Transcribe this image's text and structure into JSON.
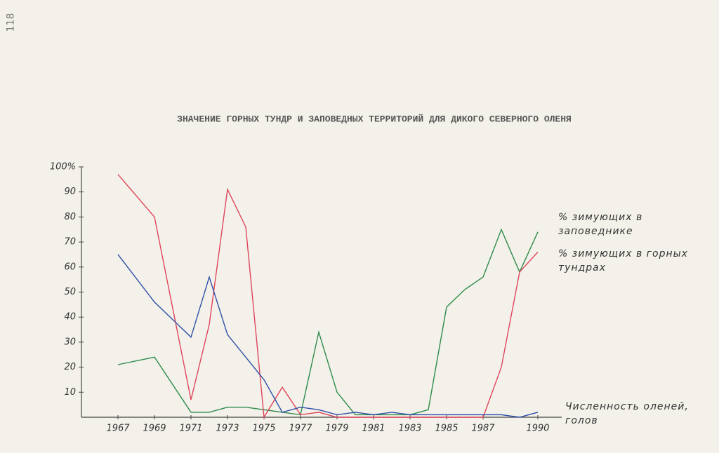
{
  "page_number": "118",
  "chart_data": {
    "type": "line",
    "title": "ЗНАЧЕНИЕ ГОРНЫХ ТУНДР И ЗАПОВЕДНЫХ ТЕРРИТОРИЙ ДЛЯ ДИКОГО СЕВЕРНОГО ОЛЕНЯ",
    "x": [
      1967,
      1969,
      1971,
      1972,
      1973,
      1974,
      1975,
      1976,
      1977,
      1978,
      1979,
      1980,
      1981,
      1982,
      1983,
      1984,
      1985,
      1986,
      1987,
      1988,
      1989,
      1990
    ],
    "series": [
      {
        "name": "% зимующих в заповеднике",
        "color": "#2e8b4a",
        "values": [
          21,
          24,
          2,
          2,
          4,
          4,
          3,
          2,
          1,
          34,
          10,
          1,
          1,
          1,
          1,
          3,
          44,
          51,
          56,
          75,
          58,
          74
        ]
      },
      {
        "name": "% зимующих в горных тундрах",
        "color": "#e0455a",
        "values": [
          97,
          80,
          7,
          37,
          91,
          76,
          0,
          12,
          1,
          2,
          0,
          0,
          0,
          0,
          0,
          0,
          0,
          0,
          0,
          20,
          58,
          66
        ]
      },
      {
        "name": "Численность оленей, голов",
        "color": "#2f4fa8",
        "values": [
          65,
          46,
          32,
          56,
          33,
          24,
          15,
          2,
          4,
          3,
          1,
          2,
          1,
          2,
          1,
          1,
          1,
          1,
          1,
          1,
          0,
          2
        ]
      }
    ],
    "xlim": [
      1965,
      1992
    ],
    "xticks": [
      1967,
      1969,
      1971,
      1973,
      1975,
      1977,
      1979,
      1981,
      1983,
      1985,
      1987,
      1990
    ],
    "ylim": [
      0,
      100
    ],
    "yticks": [
      10,
      20,
      30,
      40,
      50,
      60,
      70,
      80,
      90,
      {
        "value": 100,
        "label": "100%"
      }
    ]
  }
}
